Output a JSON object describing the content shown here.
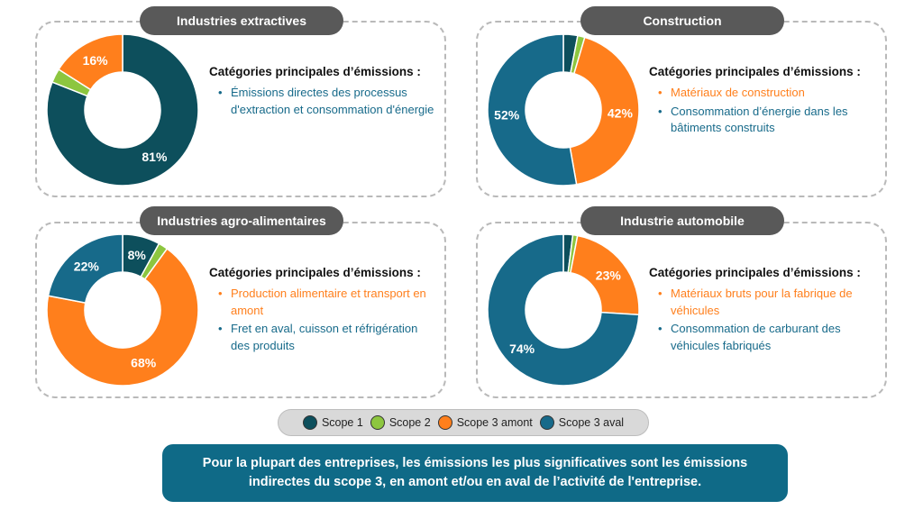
{
  "colors": {
    "scope1": "#0d4f5c",
    "scope2": "#8dc63f",
    "scope3_amont": "#ff7f1c",
    "scope3_aval": "#176a8a"
  },
  "category_heading": "Catégories principales d’émissions :",
  "legend": [
    {
      "key": "scope1",
      "label": "Scope 1"
    },
    {
      "key": "scope2",
      "label": "Scope 2"
    },
    {
      "key": "scope3_amont",
      "label": "Scope 3 amont"
    },
    {
      "key": "scope3_aval",
      "label": "Scope 3 aval"
    }
  ],
  "chart_data": [
    {
      "type": "pie",
      "title": "Industries extractives",
      "series": [
        {
          "name": "Scope 1",
          "value": 81
        },
        {
          "name": "Scope 2",
          "value": 3
        },
        {
          "name": "Scope 3 amont",
          "value": 16
        },
        {
          "name": "Scope 3 aval",
          "value": 0
        }
      ],
      "labels": [
        "81%",
        "",
        "16%",
        ""
      ],
      "categories": [
        {
          "text": "Émissions directes des processus d'extraction et consommation d'énergie",
          "color_key": "scope3_aval"
        }
      ]
    },
    {
      "type": "pie",
      "title": "Construction",
      "series": [
        {
          "name": "Scope 1",
          "value": 3
        },
        {
          "name": "Scope 2",
          "value": 1.5
        },
        {
          "name": "Scope 3 amont",
          "value": 42
        },
        {
          "name": "Scope 3 aval",
          "value": 52
        }
      ],
      "labels": [
        "",
        "",
        "42%",
        "52%"
      ],
      "categories": [
        {
          "text": "Matériaux de construction",
          "color_key": "scope3_amont"
        },
        {
          "text": "Consommation d’énergie dans les bâtiments construits",
          "color_key": "scope3_aval"
        }
      ]
    },
    {
      "type": "pie",
      "title": "Industries agro-alimentaires",
      "series": [
        {
          "name": "Scope 1",
          "value": 8
        },
        {
          "name": "Scope 2",
          "value": 2
        },
        {
          "name": "Scope 3 amont",
          "value": 68
        },
        {
          "name": "Scope 3 aval",
          "value": 22
        }
      ],
      "labels": [
        "8%",
        "",
        "68%",
        "22%"
      ],
      "categories": [
        {
          "text": "Production alimentaire et transport en amont",
          "color_key": "scope3_amont"
        },
        {
          "text": "Fret en aval, cuisson et réfrigération des produits",
          "color_key": "scope3_aval"
        }
      ]
    },
    {
      "type": "pie",
      "title": "Industrie automobile",
      "series": [
        {
          "name": "Scope 1",
          "value": 2
        },
        {
          "name": "Scope 2",
          "value": 1
        },
        {
          "name": "Scope 3 amont",
          "value": 23
        },
        {
          "name": "Scope 3 aval",
          "value": 74
        }
      ],
      "labels": [
        "",
        "",
        "23%",
        "74%"
      ],
      "categories": [
        {
          "text": "Matériaux bruts pour la fabrique de véhicules",
          "color_key": "scope3_amont"
        },
        {
          "text": "Consommation de carburant des véhicules fabriqués",
          "color_key": "scope3_aval"
        }
      ]
    }
  ],
  "banner": "Pour la plupart des entreprises, les émissions les plus significatives sont les émissions indirectes du scope 3, en amont et/ou en aval de l’activité de l'entreprise."
}
